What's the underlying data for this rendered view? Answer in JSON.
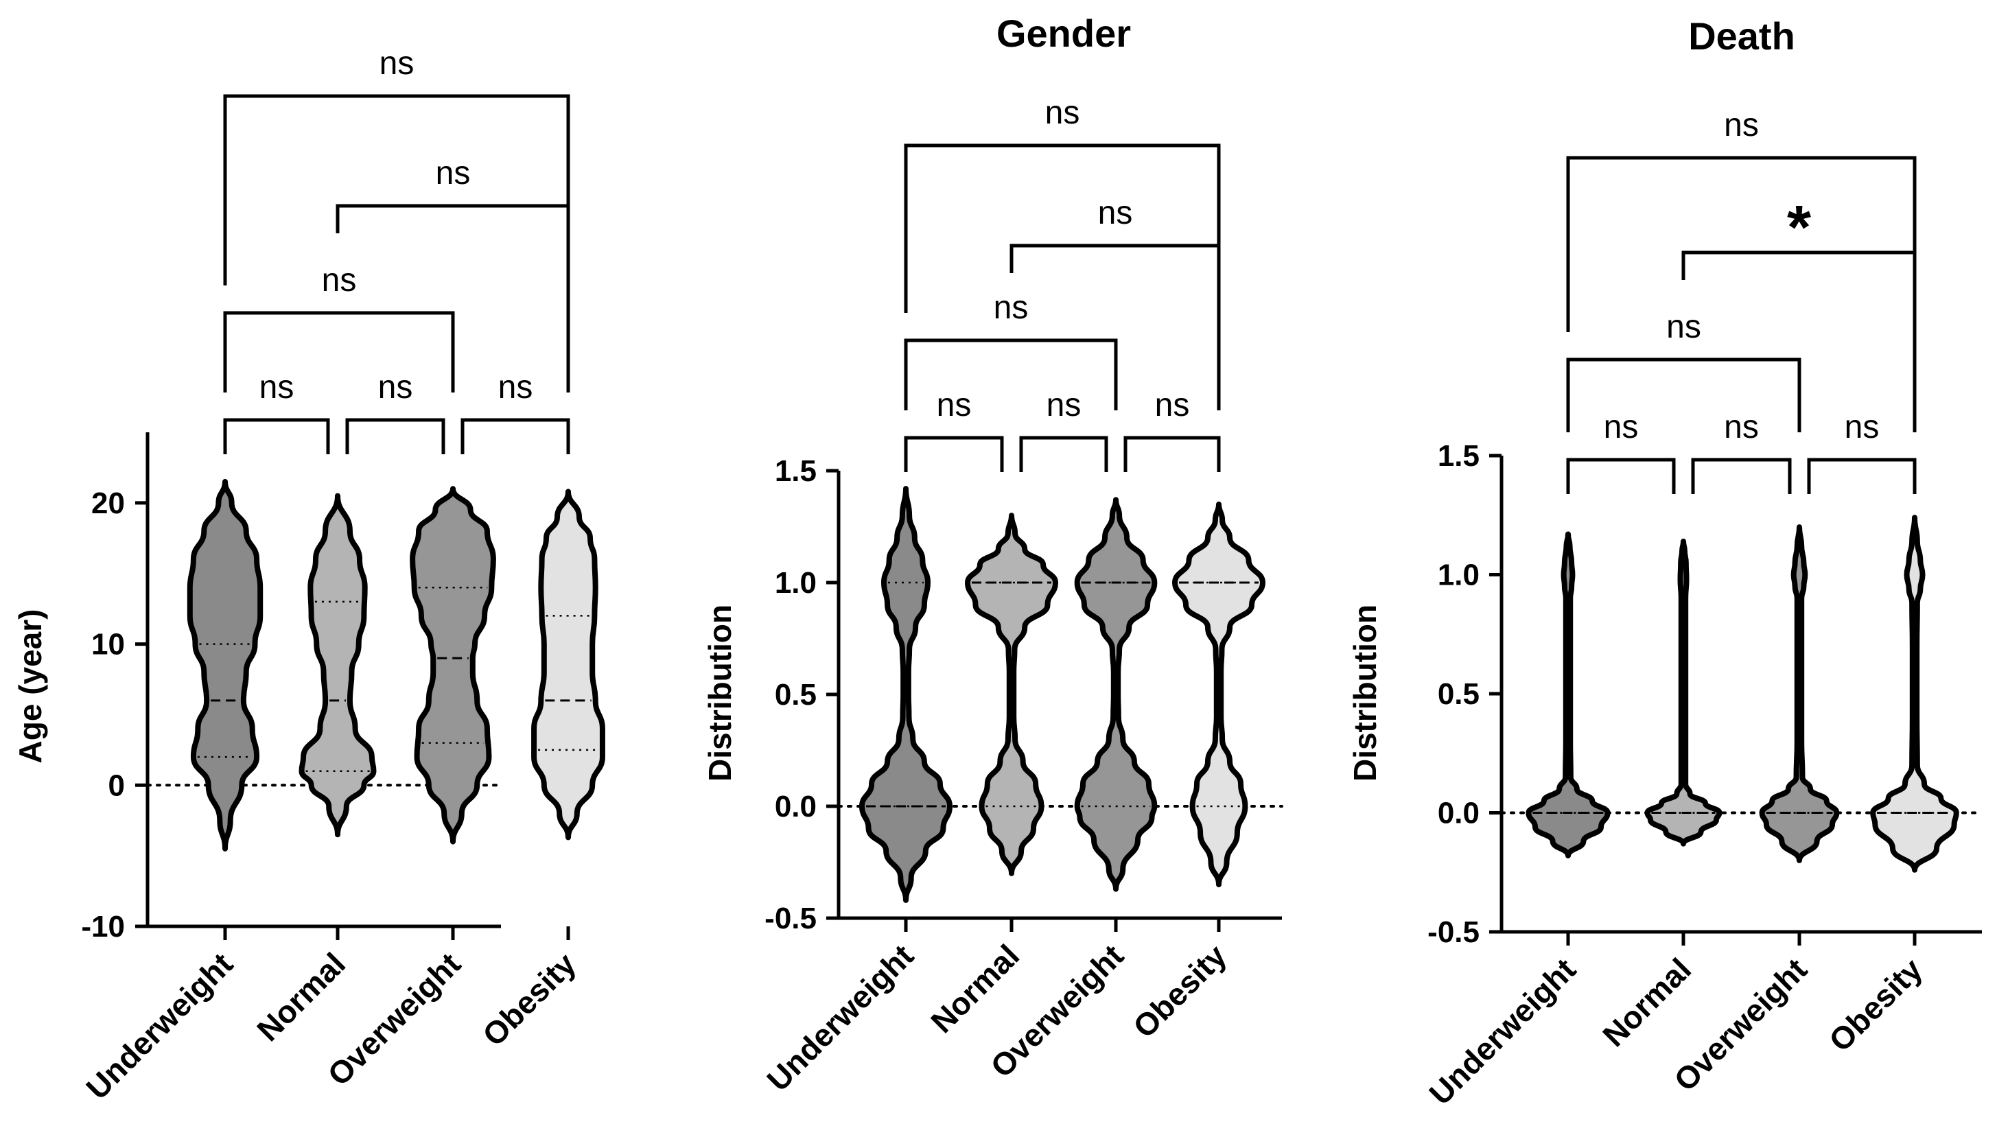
{
  "colors": {
    "Underweight": "#8a8a8a",
    "Normal": "#b4b4b4",
    "Overweight": "#969696",
    "Obesity": "#e2e2e2",
    "line": "#000000"
  },
  "chart_data": [
    {
      "type": "violin",
      "title": "",
      "ylabel": "Age (year)",
      "xlabel": "",
      "ylim": [
        -10,
        25
      ],
      "yticks": [
        -10,
        0,
        10,
        20
      ],
      "yticklabels": [
        "-10",
        "0",
        "10",
        "20"
      ],
      "reference_line": 0,
      "categories": [
        "Underweight",
        "Normal",
        "Overweight",
        "Obesity"
      ],
      "violins": [
        {
          "name": "Underweight",
          "min": -4.5,
          "max": 21.5,
          "median": 6,
          "q1": 2,
          "q3": 10,
          "profile": [
            [
              -4.5,
              0
            ],
            [
              -2.5,
              0.12
            ],
            [
              0,
              0.38
            ],
            [
              2,
              0.72
            ],
            [
              4,
              0.62
            ],
            [
              6,
              0.42
            ],
            [
              8,
              0.48
            ],
            [
              10,
              0.68
            ],
            [
              12,
              0.8
            ],
            [
              14,
              0.8
            ],
            [
              16,
              0.72
            ],
            [
              18,
              0.48
            ],
            [
              20,
              0.15
            ],
            [
              21.5,
              0
            ]
          ]
        },
        {
          "name": "Normal",
          "min": -3.5,
          "max": 20.5,
          "median": 6,
          "q1": 1,
          "q3": 13,
          "profile": [
            [
              -3.5,
              0
            ],
            [
              -1.5,
              0.2
            ],
            [
              0,
              0.6
            ],
            [
              1,
              0.82
            ],
            [
              2,
              0.78
            ],
            [
              4,
              0.4
            ],
            [
              6,
              0.28
            ],
            [
              8,
              0.32
            ],
            [
              10,
              0.48
            ],
            [
              12,
              0.6
            ],
            [
              14,
              0.62
            ],
            [
              16,
              0.5
            ],
            [
              18,
              0.28
            ],
            [
              20.5,
              0
            ]
          ]
        },
        {
          "name": "Overweight",
          "min": -4,
          "max": 21,
          "median": 9,
          "q1": 3,
          "q3": 14,
          "profile": [
            [
              -4,
              0
            ],
            [
              -2,
              0.2
            ],
            [
              0,
              0.55
            ],
            [
              2,
              0.82
            ],
            [
              4,
              0.78
            ],
            [
              6,
              0.55
            ],
            [
              8,
              0.45
            ],
            [
              9,
              0.45
            ],
            [
              10,
              0.5
            ],
            [
              12,
              0.72
            ],
            [
              14,
              0.88
            ],
            [
              16,
              0.92
            ],
            [
              18,
              0.78
            ],
            [
              19.5,
              0.4
            ],
            [
              21,
              0
            ]
          ]
        },
        {
          "name": "Obesity",
          "min": -3.7,
          "max": 20.8,
          "median": 6,
          "q1": 2.5,
          "q3": 12,
          "profile": [
            [
              -3.7,
              0
            ],
            [
              -2,
              0.2
            ],
            [
              0,
              0.55
            ],
            [
              2,
              0.78
            ],
            [
              4,
              0.78
            ],
            [
              6,
              0.62
            ],
            [
              8,
              0.55
            ],
            [
              10,
              0.55
            ],
            [
              12,
              0.6
            ],
            [
              14,
              0.62
            ],
            [
              16,
              0.6
            ],
            [
              17.5,
              0.5
            ],
            [
              19,
              0.25
            ],
            [
              20.8,
              0
            ]
          ]
        }
      ],
      "comparisons": [
        {
          "from": "Underweight",
          "to": "Normal",
          "label": "ns"
        },
        {
          "from": "Normal",
          "to": "Overweight",
          "label": "ns"
        },
        {
          "from": "Overweight",
          "to": "Obesity",
          "label": "ns"
        },
        {
          "from": "Underweight",
          "to": "Overweight",
          "label": "ns"
        },
        {
          "from": "Normal",
          "to": "Obesity",
          "label": "ns"
        },
        {
          "from": "Underweight",
          "to": "Obesity",
          "label": "ns"
        }
      ]
    },
    {
      "type": "violin",
      "title": "Gender",
      "ylabel": "Distribution",
      "xlabel": "",
      "ylim": [
        -0.5,
        1.5
      ],
      "yticks": [
        -0.5,
        0,
        0.5,
        1,
        1.5
      ],
      "yticklabels": [
        "-0.5",
        "0.0",
        "0.5",
        "1.0",
        "1.5"
      ],
      "reference_line": 0,
      "categories": [
        "Underweight",
        "Normal",
        "Overweight",
        "Obesity"
      ],
      "violins": [
        {
          "name": "Underweight",
          "min": -0.42,
          "max": 1.42,
          "median": 0,
          "q1": 0,
          "q3": 1,
          "profile": [
            [
              -0.42,
              0
            ],
            [
              -0.32,
              0.12
            ],
            [
              -0.2,
              0.45
            ],
            [
              -0.1,
              0.85
            ],
            [
              0,
              1.0
            ],
            [
              0.1,
              0.78
            ],
            [
              0.2,
              0.42
            ],
            [
              0.3,
              0.16
            ],
            [
              0.4,
              0.07
            ],
            [
              0.5,
              0.06
            ],
            [
              0.6,
              0.06
            ],
            [
              0.7,
              0.08
            ],
            [
              0.8,
              0.22
            ],
            [
              0.9,
              0.42
            ],
            [
              1.0,
              0.5
            ],
            [
              1.1,
              0.38
            ],
            [
              1.2,
              0.2
            ],
            [
              1.3,
              0.08
            ],
            [
              1.42,
              0
            ]
          ]
        },
        {
          "name": "Normal",
          "min": -0.3,
          "max": 1.3,
          "median": 1,
          "q1": 0,
          "q3": 1,
          "profile": [
            [
              -0.3,
              0
            ],
            [
              -0.2,
              0.22
            ],
            [
              -0.1,
              0.5
            ],
            [
              0,
              0.68
            ],
            [
              0.1,
              0.55
            ],
            [
              0.2,
              0.26
            ],
            [
              0.3,
              0.08
            ],
            [
              0.4,
              0.05
            ],
            [
              0.5,
              0.05
            ],
            [
              0.6,
              0.05
            ],
            [
              0.7,
              0.07
            ],
            [
              0.8,
              0.3
            ],
            [
              0.9,
              0.82
            ],
            [
              1.0,
              1.0
            ],
            [
              1.08,
              0.72
            ],
            [
              1.15,
              0.3
            ],
            [
              1.22,
              0.08
            ],
            [
              1.3,
              0
            ]
          ]
        },
        {
          "name": "Overweight",
          "min": -0.37,
          "max": 1.37,
          "median": 1,
          "q1": 0,
          "q3": 1,
          "profile": [
            [
              -0.37,
              0
            ],
            [
              -0.28,
              0.16
            ],
            [
              -0.15,
              0.5
            ],
            [
              -0.05,
              0.82
            ],
            [
              0,
              0.88
            ],
            [
              0.1,
              0.75
            ],
            [
              0.2,
              0.42
            ],
            [
              0.3,
              0.16
            ],
            [
              0.4,
              0.06
            ],
            [
              0.5,
              0.05
            ],
            [
              0.6,
              0.05
            ],
            [
              0.7,
              0.08
            ],
            [
              0.8,
              0.3
            ],
            [
              0.9,
              0.72
            ],
            [
              1.0,
              0.88
            ],
            [
              1.1,
              0.62
            ],
            [
              1.2,
              0.25
            ],
            [
              1.3,
              0.08
            ],
            [
              1.37,
              0
            ]
          ]
        },
        {
          "name": "Obesity",
          "min": -0.35,
          "max": 1.35,
          "median": 1,
          "q1": 0,
          "q3": 1,
          "profile": [
            [
              -0.35,
              0
            ],
            [
              -0.25,
              0.18
            ],
            [
              -0.12,
              0.42
            ],
            [
              0,
              0.6
            ],
            [
              0.1,
              0.5
            ],
            [
              0.2,
              0.25
            ],
            [
              0.3,
              0.08
            ],
            [
              0.4,
              0.05
            ],
            [
              0.5,
              0.05
            ],
            [
              0.6,
              0.05
            ],
            [
              0.7,
              0.07
            ],
            [
              0.8,
              0.25
            ],
            [
              0.9,
              0.75
            ],
            [
              1.0,
              1.0
            ],
            [
              1.1,
              0.68
            ],
            [
              1.2,
              0.25
            ],
            [
              1.28,
              0.08
            ],
            [
              1.35,
              0
            ]
          ]
        }
      ],
      "comparisons": [
        {
          "from": "Underweight",
          "to": "Normal",
          "label": "ns"
        },
        {
          "from": "Normal",
          "to": "Overweight",
          "label": "ns"
        },
        {
          "from": "Overweight",
          "to": "Obesity",
          "label": "ns"
        },
        {
          "from": "Underweight",
          "to": "Overweight",
          "label": "ns"
        },
        {
          "from": "Normal",
          "to": "Obesity",
          "label": "ns"
        },
        {
          "from": "Underweight",
          "to": "Obesity",
          "label": "ns"
        }
      ]
    },
    {
      "type": "violin",
      "title": "Death",
      "ylabel": "Distribution",
      "xlabel": "",
      "ylim": [
        -0.5,
        1.5
      ],
      "yticks": [
        -0.5,
        0,
        0.5,
        1,
        1.5
      ],
      "yticklabels": [
        "-0.5",
        "0.0",
        "0.5",
        "1.0",
        "1.5"
      ],
      "reference_line": 0,
      "categories": [
        "Underweight",
        "Normal",
        "Overweight",
        "Obesity"
      ],
      "violins": [
        {
          "name": "Underweight",
          "min": -0.18,
          "max": 1.17,
          "median": 0,
          "q1": 0,
          "q3": 0,
          "profile": [
            [
              -0.18,
              0
            ],
            [
              -0.12,
              0.35
            ],
            [
              -0.06,
              0.75
            ],
            [
              0,
              0.9
            ],
            [
              0.05,
              0.55
            ],
            [
              0.1,
              0.2
            ],
            [
              0.15,
              0.06
            ],
            [
              0.3,
              0.05
            ],
            [
              0.6,
              0.05
            ],
            [
              0.9,
              0.05
            ],
            [
              0.95,
              0.08
            ],
            [
              1.0,
              0.1
            ],
            [
              1.05,
              0.08
            ],
            [
              1.12,
              0.04
            ],
            [
              1.17,
              0
            ]
          ]
        },
        {
          "name": "Normal",
          "min": -0.13,
          "max": 1.14,
          "median": 0,
          "q1": 0,
          "q3": 0,
          "profile": [
            [
              -0.13,
              0
            ],
            [
              -0.08,
              0.4
            ],
            [
              -0.03,
              0.75
            ],
            [
              0,
              0.82
            ],
            [
              0.04,
              0.5
            ],
            [
              0.08,
              0.15
            ],
            [
              0.12,
              0.05
            ],
            [
              0.3,
              0.05
            ],
            [
              0.6,
              0.05
            ],
            [
              0.9,
              0.05
            ],
            [
              0.98,
              0.07
            ],
            [
              1.05,
              0.06
            ],
            [
              1.1,
              0.03
            ],
            [
              1.14,
              0
            ]
          ]
        },
        {
          "name": "Overweight",
          "min": -0.2,
          "max": 1.2,
          "median": 0,
          "q1": 0,
          "q3": 0,
          "profile": [
            [
              -0.2,
              0
            ],
            [
              -0.12,
              0.4
            ],
            [
              -0.05,
              0.75
            ],
            [
              0,
              0.85
            ],
            [
              0.05,
              0.62
            ],
            [
              0.1,
              0.25
            ],
            [
              0.15,
              0.07
            ],
            [
              0.3,
              0.05
            ],
            [
              0.6,
              0.05
            ],
            [
              0.9,
              0.05
            ],
            [
              0.95,
              0.1
            ],
            [
              1.0,
              0.13
            ],
            [
              1.05,
              0.1
            ],
            [
              1.12,
              0.05
            ],
            [
              1.2,
              0
            ]
          ]
        },
        {
          "name": "Obesity",
          "min": -0.24,
          "max": 1.24,
          "median": 0,
          "q1": 0,
          "q3": 0,
          "profile": [
            [
              -0.24,
              0
            ],
            [
              -0.15,
              0.5
            ],
            [
              -0.05,
              0.9
            ],
            [
              0,
              0.95
            ],
            [
              0.06,
              0.6
            ],
            [
              0.12,
              0.22
            ],
            [
              0.2,
              0.06
            ],
            [
              0.4,
              0.05
            ],
            [
              0.7,
              0.05
            ],
            [
              0.88,
              0.06
            ],
            [
              0.94,
              0.13
            ],
            [
              1.0,
              0.18
            ],
            [
              1.06,
              0.13
            ],
            [
              1.14,
              0.06
            ],
            [
              1.24,
              0
            ]
          ]
        }
      ],
      "comparisons": [
        {
          "from": "Underweight",
          "to": "Normal",
          "label": "ns"
        },
        {
          "from": "Normal",
          "to": "Overweight",
          "label": "ns"
        },
        {
          "from": "Overweight",
          "to": "Obesity",
          "label": "ns"
        },
        {
          "from": "Underweight",
          "to": "Overweight",
          "label": "ns"
        },
        {
          "from": "Normal",
          "to": "Obesity",
          "label": "*"
        },
        {
          "from": "Underweight",
          "to": "Obesity",
          "label": "ns"
        }
      ]
    }
  ]
}
